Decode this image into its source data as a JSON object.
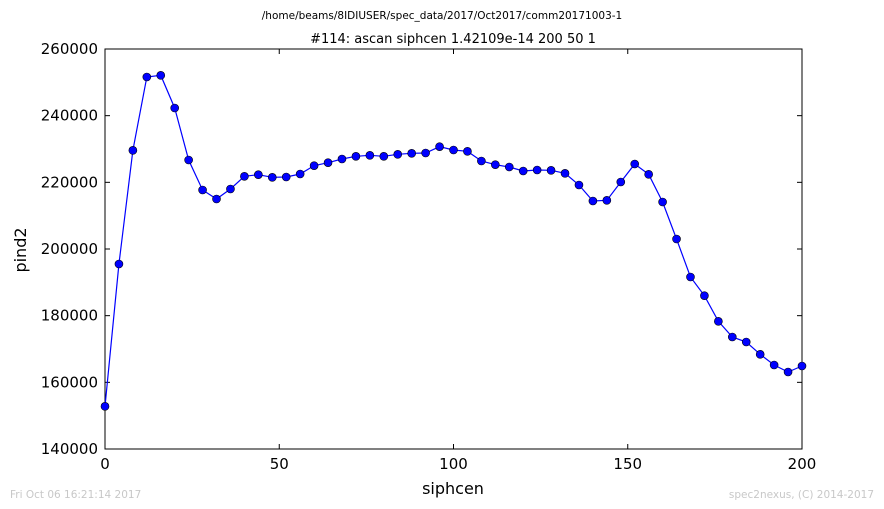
{
  "chart_data": {
    "type": "line",
    "suptitle": "/home/beams/8IDIUSER/spec_data/2017/Oct2017/comm20171003-1",
    "title": "#114: ascan  siphcen 1.42109e-14 200  50 1",
    "xlabel": "siphcen",
    "ylabel": "pind2",
    "xlim": [
      0,
      200
    ],
    "ylim": [
      140000,
      260000
    ],
    "xticks": [
      0,
      50,
      100,
      150,
      200
    ],
    "yticks": [
      140000,
      160000,
      180000,
      200000,
      220000,
      240000,
      260000
    ],
    "grid": false,
    "series": [
      {
        "color": "#0000ff",
        "marker": "circle",
        "x": [
          0,
          4,
          8,
          12,
          16,
          20,
          24,
          28,
          32,
          36,
          40,
          44,
          48,
          52,
          56,
          60,
          64,
          68,
          72,
          76,
          80,
          84,
          88,
          92,
          96,
          100,
          104,
          108,
          112,
          116,
          120,
          124,
          128,
          132,
          136,
          140,
          144,
          148,
          152,
          156,
          160,
          164,
          168,
          172,
          176,
          180,
          184,
          188,
          192,
          196,
          200
        ],
        "y": [
          152800,
          195500,
          229600,
          251600,
          252100,
          242300,
          226700,
          217700,
          215000,
          218000,
          221800,
          222300,
          221500,
          221600,
          222500,
          225000,
          225900,
          227000,
          227800,
          228100,
          227800,
          228400,
          228700,
          228800,
          230700,
          229700,
          229300,
          226400,
          225300,
          224600,
          223400,
          223700,
          223600,
          222700,
          219200,
          214400,
          214600,
          220100,
          225500,
          222400,
          214100,
          203000,
          191600,
          186000,
          178300,
          173600,
          172100,
          168400,
          165200,
          163100,
          164900
        ]
      }
    ]
  },
  "footer": {
    "left": "Fri Oct 06 16:21:14 2017",
    "right": "spec2nexus, (C) 2014-2017"
  }
}
